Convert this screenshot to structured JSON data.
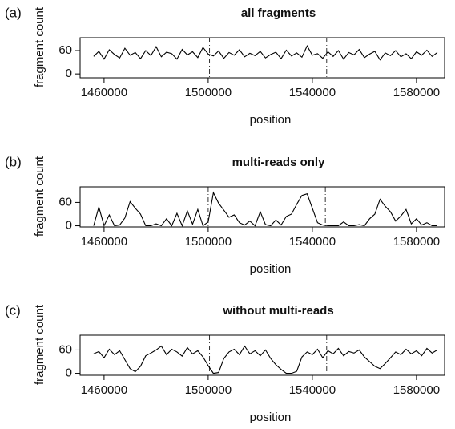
{
  "chart_data": [
    {
      "type": "line",
      "label": "(a)",
      "title": "all fragments",
      "ylabel": "fragment count",
      "xlabel": "position",
      "color": "#000000",
      "xlim": [
        1450800,
        1590800
      ],
      "ylim": [
        -10,
        93
      ],
      "xticks": [
        1460000,
        1500000,
        1540000,
        1580000
      ],
      "yticks": [
        0,
        60
      ],
      "vlines": [
        1500500,
        1545500
      ],
      "x": [
        1456000,
        1458000,
        1460000,
        1462000,
        1464000,
        1466000,
        1468000,
        1470000,
        1472000,
        1474000,
        1476000,
        1478000,
        1480000,
        1482000,
        1484000,
        1486000,
        1488000,
        1490000,
        1492000,
        1494000,
        1496000,
        1498000,
        1500000,
        1502000,
        1504000,
        1506000,
        1508000,
        1510000,
        1512000,
        1514000,
        1516000,
        1518000,
        1520000,
        1522000,
        1524000,
        1526000,
        1528000,
        1530000,
        1532000,
        1534000,
        1536000,
        1538000,
        1540000,
        1542000,
        1544000,
        1546000,
        1548000,
        1550000,
        1552000,
        1554000,
        1556000,
        1558000,
        1560000,
        1562000,
        1564000,
        1566000,
        1568000,
        1570000,
        1572000,
        1574000,
        1576000,
        1578000,
        1580000,
        1582000,
        1584000,
        1586000,
        1588000
      ],
      "values": [
        45,
        58,
        38,
        62,
        50,
        41,
        66,
        48,
        55,
        39,
        60,
        47,
        70,
        44,
        56,
        52,
        38,
        63,
        49,
        57,
        42,
        68,
        51,
        46,
        59,
        40,
        55,
        48,
        62,
        44,
        53,
        47,
        58,
        41,
        50,
        56,
        39,
        61,
        46,
        54,
        43,
        72,
        48,
        52,
        40,
        57,
        45,
        60,
        38,
        55,
        49,
        63,
        42,
        51,
        58,
        36,
        54,
        47,
        60,
        44,
        52,
        39,
        57,
        48,
        61,
        45,
        55
      ]
    },
    {
      "type": "line",
      "label": "(b)",
      "title": "multi-reads only",
      "ylabel": "fragment count",
      "xlabel": "position",
      "color": "#000000",
      "xlim": [
        1450800,
        1590800
      ],
      "ylim": [
        -3,
        100
      ],
      "xticks": [
        1460000,
        1500000,
        1540000,
        1580000
      ],
      "yticks": [
        0,
        60
      ],
      "vlines": [
        1500000,
        1545000
      ],
      "x": [
        1456000,
        1458000,
        1460000,
        1462000,
        1464000,
        1466000,
        1468000,
        1470000,
        1472000,
        1474000,
        1476000,
        1478000,
        1480000,
        1482000,
        1484000,
        1486000,
        1488000,
        1490000,
        1492000,
        1494000,
        1496000,
        1498000,
        1500000,
        1502000,
        1504000,
        1506000,
        1508000,
        1510000,
        1512000,
        1514000,
        1516000,
        1518000,
        1520000,
        1522000,
        1524000,
        1526000,
        1528000,
        1530000,
        1532000,
        1534000,
        1536000,
        1538000,
        1540000,
        1542000,
        1544000,
        1546000,
        1548000,
        1550000,
        1552000,
        1554000,
        1556000,
        1558000,
        1560000,
        1562000,
        1564000,
        1566000,
        1568000,
        1570000,
        1572000,
        1574000,
        1576000,
        1578000,
        1580000,
        1582000,
        1584000,
        1586000,
        1588000
      ],
      "values": [
        0,
        48,
        0,
        28,
        0,
        2,
        20,
        62,
        45,
        30,
        0,
        0,
        5,
        0,
        18,
        0,
        32,
        0,
        38,
        4,
        42,
        0,
        10,
        85,
        58,
        40,
        22,
        28,
        8,
        2,
        12,
        0,
        36,
        3,
        0,
        15,
        2,
        24,
        30,
        55,
        78,
        82,
        45,
        8,
        2,
        0,
        0,
        0,
        10,
        0,
        0,
        3,
        0,
        18,
        30,
        68,
        50,
        36,
        12,
        25,
        42,
        5,
        18,
        2,
        8,
        0,
        0
      ]
    },
    {
      "type": "line",
      "label": "(c)",
      "title": "without multi-reads",
      "ylabel": "fragment count",
      "xlabel": "position",
      "color": "#000000",
      "xlim": [
        1450800,
        1590800
      ],
      "ylim": [
        -5,
        98
      ],
      "xticks": [
        1460000,
        1500000,
        1540000,
        1580000
      ],
      "yticks": [
        0,
        60
      ],
      "vlines": [
        1500500,
        1545500
      ],
      "x": [
        1456000,
        1458000,
        1460000,
        1462000,
        1464000,
        1466000,
        1468000,
        1470000,
        1472000,
        1474000,
        1476000,
        1478000,
        1480000,
        1482000,
        1484000,
        1486000,
        1488000,
        1490000,
        1492000,
        1494000,
        1496000,
        1498000,
        1500000,
        1502000,
        1504000,
        1506000,
        1508000,
        1510000,
        1512000,
        1514000,
        1516000,
        1518000,
        1520000,
        1522000,
        1524000,
        1526000,
        1528000,
        1530000,
        1532000,
        1534000,
        1536000,
        1538000,
        1540000,
        1542000,
        1544000,
        1546000,
        1548000,
        1550000,
        1552000,
        1554000,
        1556000,
        1558000,
        1560000,
        1562000,
        1564000,
        1566000,
        1568000,
        1570000,
        1572000,
        1574000,
        1576000,
        1578000,
        1580000,
        1582000,
        1584000,
        1586000,
        1588000
      ],
      "values": [
        50,
        56,
        40,
        62,
        48,
        58,
        35,
        12,
        4,
        18,
        45,
        52,
        60,
        70,
        48,
        62,
        55,
        44,
        66,
        50,
        58,
        42,
        20,
        0,
        2,
        38,
        55,
        62,
        48,
        70,
        50,
        58,
        45,
        60,
        38,
        22,
        10,
        0,
        0,
        5,
        42,
        55,
        48,
        62,
        40,
        58,
        50,
        64,
        45,
        56,
        52,
        60,
        42,
        30,
        18,
        12,
        25,
        40,
        55,
        48,
        62,
        50,
        58,
        45,
        64,
        52,
        60
      ]
    }
  ]
}
